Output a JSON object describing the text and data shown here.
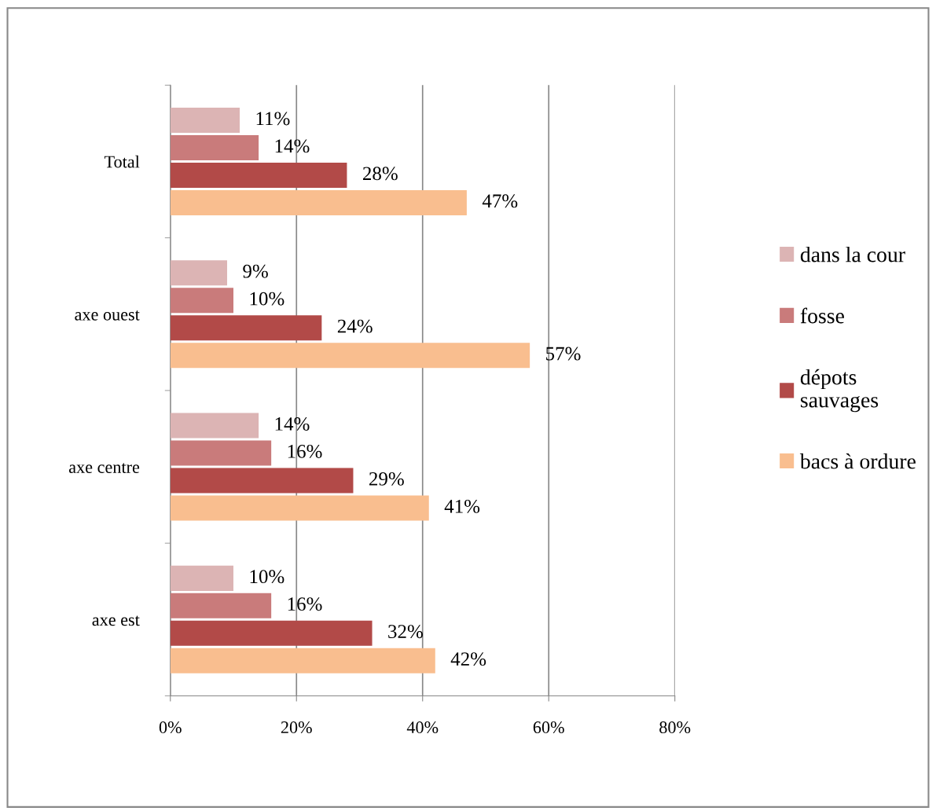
{
  "chart_data": {
    "type": "bar",
    "orientation": "horizontal",
    "categories": [
      "Total",
      "axe ouest",
      "axe centre",
      "axe est"
    ],
    "series": [
      {
        "name": "dans la cour",
        "color": "#dcb4b4",
        "values": [
          11,
          9,
          14,
          10
        ],
        "value_labels": [
          "11%",
          "9%",
          "14%",
          "10%"
        ]
      },
      {
        "name": "fosse",
        "color": "#c97b7b",
        "values": [
          14,
          10,
          16,
          16
        ],
        "value_labels": [
          "14%",
          "10%",
          "16%",
          "16%"
        ]
      },
      {
        "name": "dépots sauvages",
        "color": "#b24a48",
        "values": [
          28,
          24,
          29,
          32
        ],
        "value_labels": [
          "28%",
          "24%",
          "29%",
          "32%"
        ]
      },
      {
        "name": "bacs à ordure",
        "color": "#f9be8f",
        "values": [
          47,
          57,
          41,
          42
        ],
        "value_labels": [
          "47%",
          "57%",
          "41%",
          "42%"
        ]
      }
    ],
    "xlim": [
      0,
      80
    ],
    "xticks": [
      {
        "value": 0,
        "label": "0%"
      },
      {
        "value": 20,
        "label": "20%"
      },
      {
        "value": 40,
        "label": "40%"
      },
      {
        "value": 60,
        "label": "60%"
      },
      {
        "value": 80,
        "label": "80%"
      }
    ],
    "grid": "x",
    "legend": "right"
  }
}
